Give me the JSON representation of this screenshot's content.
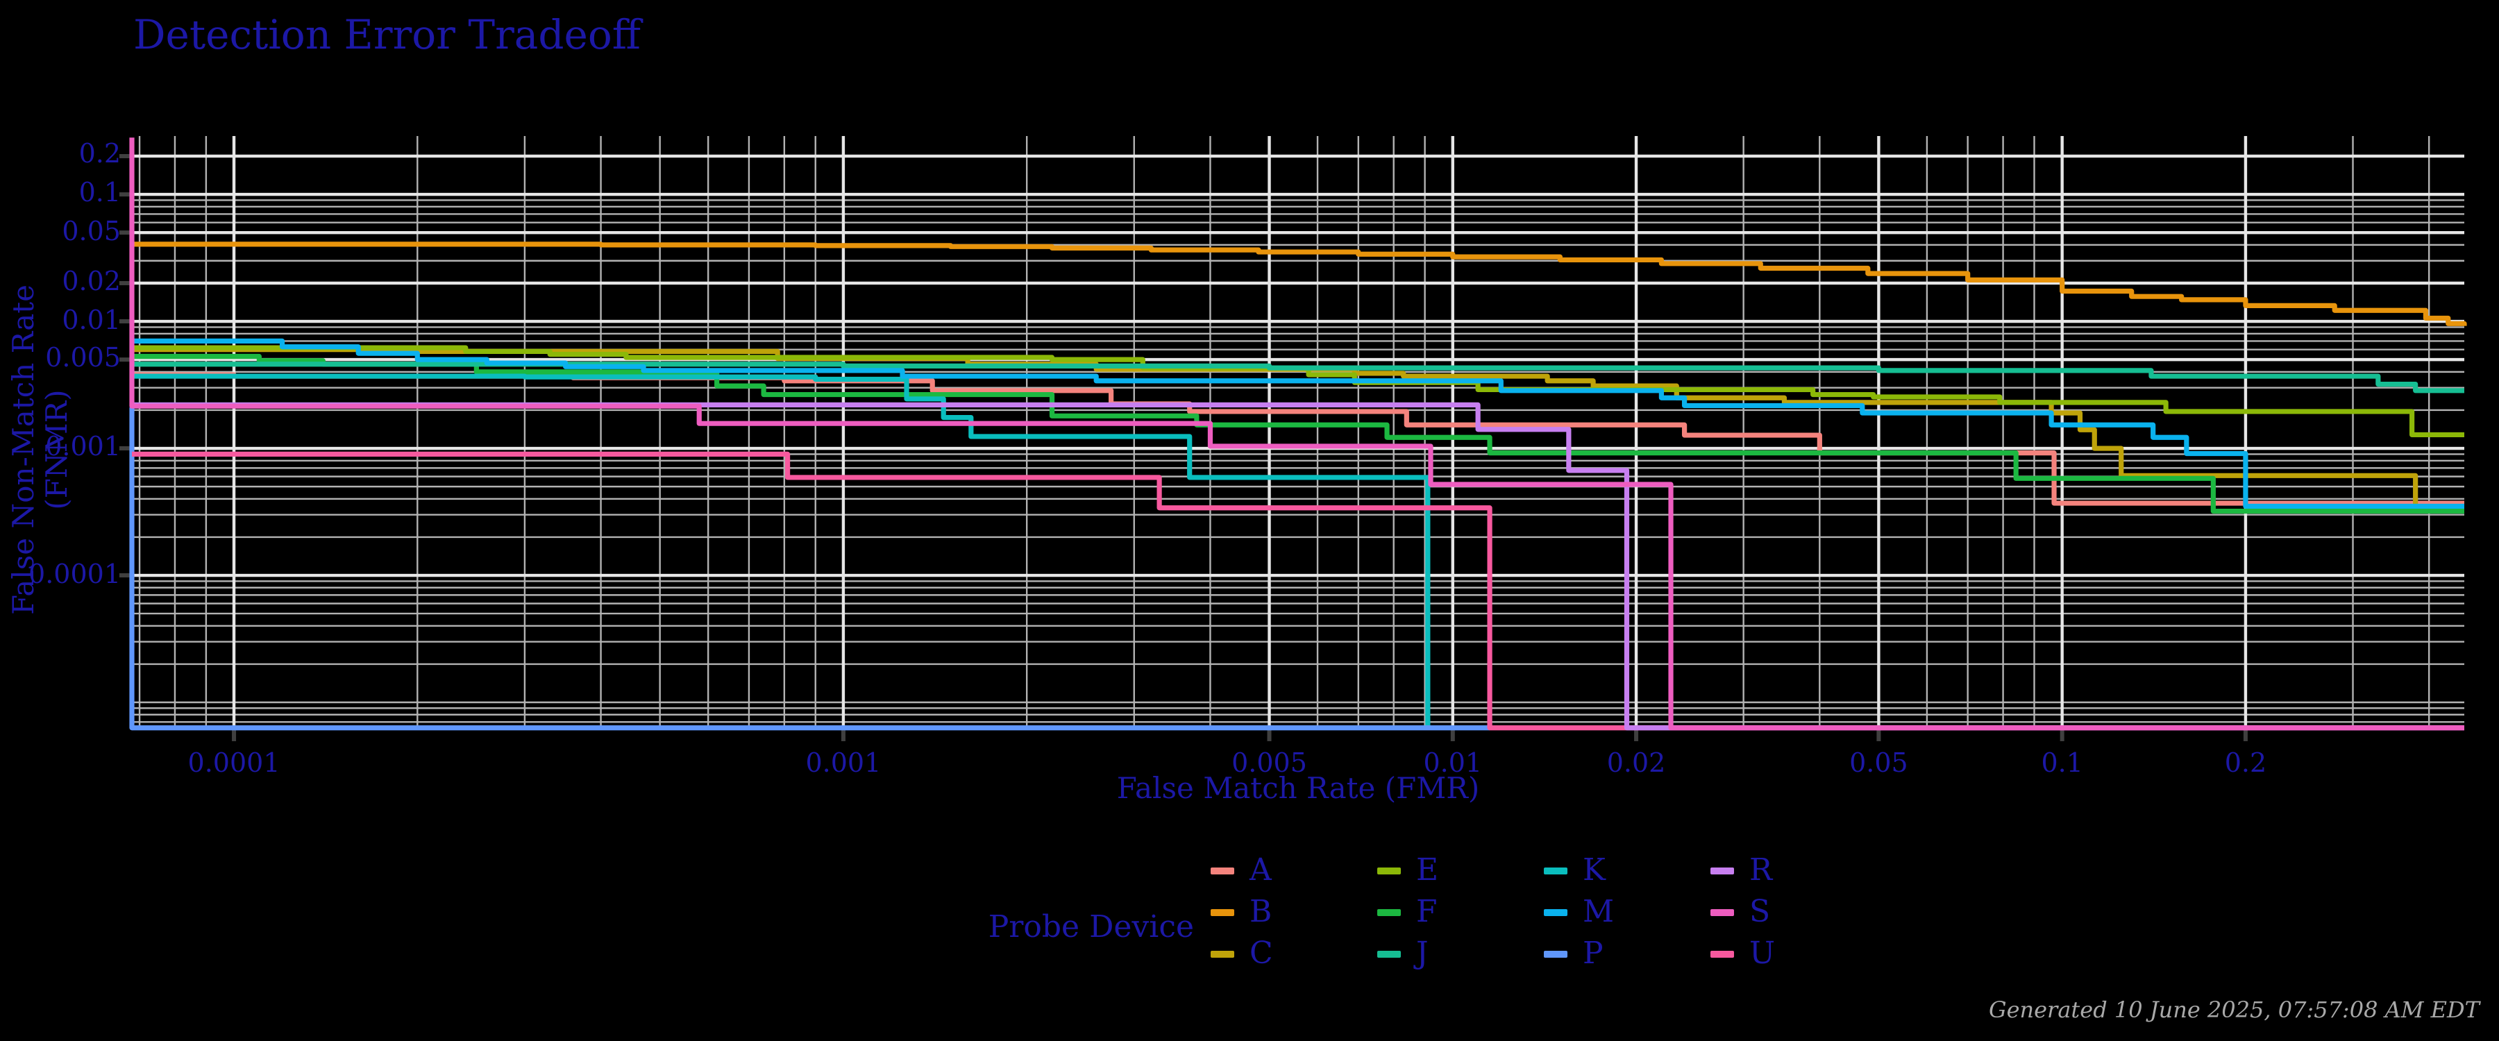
{
  "title": "Detection Error Tradeoff",
  "footer": "Generated 10 June 2025, 07:57:08 AM EDT",
  "legend": {
    "title": "Probe Device",
    "rows_per_column": 3
  },
  "chart_data": {
    "type": "line",
    "subtype": "step-DET-curves",
    "xlabel": "False Match Rate (FMR)",
    "ylabel": "False Non-Match Rate (FNMR)",
    "x_scale": "log",
    "y_scale": "log",
    "xlim": [
      6.8e-05,
      0.457
    ],
    "ylim": [
      6.2e-06,
      0.288
    ],
    "x_ticks": [
      0.0001,
      0.001,
      0.005,
      0.01,
      0.02,
      0.05,
      0.1,
      0.2
    ],
    "x_tick_labels": [
      "0.0001",
      "0.001",
      "0.005",
      "0.01",
      "0.02",
      "0.05",
      "0.1",
      "0.2"
    ],
    "y_ticks": [
      0.2,
      0.1,
      0.05,
      0.02,
      0.01,
      0.005,
      0.001,
      0.0001
    ],
    "y_tick_labels": [
      "0.2",
      "0.1",
      "0.05",
      "0.02",
      "0.01",
      "0.005",
      "0.001",
      "0.0001"
    ],
    "grid": "on",
    "grid_minor_color": "#b3b3b3",
    "grid_major_color": "#e6e6e6",
    "tick_mark_color": "#3f3f3f",
    "background_color": "#000000",
    "text_color": "#1c18a6",
    "legend_position": "bottom-center",
    "draw_order": [
      "A",
      "B",
      "C",
      "E",
      "F",
      "J",
      "K",
      "M",
      "P",
      "U",
      "R",
      "S"
    ],
    "series": [
      {
        "name": "A",
        "color": "#F4837D",
        "points": [
          [
            6.8e-05,
            0.0038
          ],
          [
            0.0001,
            0.0037
          ],
          [
            0.00036,
            0.0036
          ],
          [
            0.0008,
            0.0034
          ],
          [
            0.0014,
            0.00285
          ],
          [
            0.00275,
            0.00224
          ],
          [
            0.0037,
            0.00195
          ],
          [
            0.0084,
            0.00153
          ],
          [
            0.024,
            0.00127
          ],
          [
            0.04,
            0.00092
          ],
          [
            0.097,
            0.00037
          ],
          [
            0.457,
            0.00037
          ]
        ]
      },
      {
        "name": "B",
        "color": "#E8940C",
        "points": [
          [
            6.8e-05,
            0.0405
          ],
          [
            0.0004,
            0.04
          ],
          [
            0.0009,
            0.0395
          ],
          [
            0.0015,
            0.0388
          ],
          [
            0.0022,
            0.0378
          ],
          [
            0.0032,
            0.0365
          ],
          [
            0.0048,
            0.0352
          ],
          [
            0.007,
            0.0338
          ],
          [
            0.01,
            0.0322
          ],
          [
            0.015,
            0.0305
          ],
          [
            0.022,
            0.0285
          ],
          [
            0.032,
            0.0262
          ],
          [
            0.048,
            0.0238
          ],
          [
            0.07,
            0.0212
          ],
          [
            0.1,
            0.0173
          ],
          [
            0.13,
            0.0157
          ],
          [
            0.157,
            0.0148
          ],
          [
            0.2,
            0.0133
          ],
          [
            0.28,
            0.0122
          ],
          [
            0.395,
            0.0106
          ],
          [
            0.43,
            0.0096
          ],
          [
            0.457,
            0.0092
          ]
        ]
      },
      {
        "name": "C",
        "color": "#BFA30A",
        "points": [
          [
            6.8e-05,
            0.006
          ],
          [
            0.0002,
            0.0058
          ],
          [
            0.00078,
            0.0051
          ],
          [
            0.0016,
            0.0046
          ],
          [
            0.0026,
            0.0042
          ],
          [
            0.0069,
            0.0039
          ],
          [
            0.0083,
            0.0037
          ],
          [
            0.0143,
            0.0034
          ],
          [
            0.017,
            0.0031
          ],
          [
            0.0233,
            0.0025
          ],
          [
            0.035,
            0.0023
          ],
          [
            0.096,
            0.0019
          ],
          [
            0.107,
            0.0014
          ],
          [
            0.113,
            0.001
          ],
          [
            0.125,
            0.00061
          ],
          [
            0.38,
            0.00034
          ],
          [
            0.457,
            0.00034
          ]
        ]
      },
      {
        "name": "E",
        "color": "#8CB808",
        "points": [
          [
            6.8e-05,
            0.0062
          ],
          [
            0.00024,
            0.0058
          ],
          [
            0.00033,
            0.0055
          ],
          [
            0.00044,
            0.0052
          ],
          [
            0.0022,
            0.005
          ],
          [
            0.0031,
            0.0043
          ],
          [
            0.0058,
            0.0038
          ],
          [
            0.0069,
            0.0033
          ],
          [
            0.011,
            0.0029
          ],
          [
            0.039,
            0.00265
          ],
          [
            0.049,
            0.00254
          ],
          [
            0.079,
            0.0023
          ],
          [
            0.148,
            0.00195
          ],
          [
            0.375,
            0.00128
          ],
          [
            0.457,
            0.00128
          ]
        ]
      },
      {
        "name": "F",
        "color": "#1CB841",
        "points": [
          [
            6.8e-05,
            0.0053
          ],
          [
            0.00011,
            0.0049
          ],
          [
            0.00014,
            0.0046
          ],
          [
            0.00025,
            0.004
          ],
          [
            0.00062,
            0.0031
          ],
          [
            0.00074,
            0.00265
          ],
          [
            0.0022,
            0.0018
          ],
          [
            0.0038,
            0.00153
          ],
          [
            0.0078,
            0.00122
          ],
          [
            0.0115,
            0.00092
          ],
          [
            0.084,
            0.00058
          ],
          [
            0.177,
            0.00032
          ],
          [
            0.457,
            0.00032
          ]
        ]
      },
      {
        "name": "J",
        "color": "#16BE93",
        "points": [
          [
            6.8e-05,
            0.0046
          ],
          [
            0.001,
            0.00445
          ],
          [
            0.005,
            0.0043
          ],
          [
            0.05,
            0.0041
          ],
          [
            0.14,
            0.0037
          ],
          [
            0.33,
            0.0032
          ],
          [
            0.38,
            0.00285
          ],
          [
            0.457,
            0.00285
          ]
        ]
      },
      {
        "name": "K",
        "color": "#0ABEBE",
        "points": [
          [
            6.8e-05,
            0.0037
          ],
          [
            0.0003,
            0.00365
          ],
          [
            0.0009,
            0.0035
          ],
          [
            0.00127,
            0.00245
          ],
          [
            0.00146,
            0.00175
          ],
          [
            0.00162,
            0.00124
          ],
          [
            0.0037,
            0.00059
          ],
          [
            0.0091,
            6.3e-06
          ]
        ]
      },
      {
        "name": "M",
        "color": "#0AB2EE",
        "points": [
          [
            6.8e-05,
            0.007
          ],
          [
            0.00012,
            0.0063
          ],
          [
            0.00016,
            0.0056
          ],
          [
            0.0002,
            0.005
          ],
          [
            0.00026,
            0.0047
          ],
          [
            0.00035,
            0.0044
          ],
          [
            0.00047,
            0.0041
          ],
          [
            0.00125,
            0.0037
          ],
          [
            0.0026,
            0.0034
          ],
          [
            0.012,
            0.00285
          ],
          [
            0.022,
            0.0025
          ],
          [
            0.024,
            0.00217
          ],
          [
            0.047,
            0.0019
          ],
          [
            0.096,
            0.00153
          ],
          [
            0.141,
            0.00122
          ],
          [
            0.16,
            0.00091
          ],
          [
            0.2,
            0.00035
          ],
          [
            0.457,
            0.00035
          ]
        ]
      },
      {
        "name": "P",
        "color": "#6097FC",
        "points": [
          [
            6.8e-05,
            0.0021
          ],
          [
            6.8e-05,
            6.3e-06
          ],
          [
            0.0115,
            6.3e-06
          ]
        ]
      },
      {
        "name": "R",
        "color": "#C77FF0",
        "points": [
          [
            6.8e-05,
            0.0022
          ],
          [
            0.011,
            0.00141
          ],
          [
            0.0155,
            0.00067
          ],
          [
            0.0193,
            6.3e-06
          ],
          [
            0.457,
            6.3e-06
          ]
        ]
      },
      {
        "name": "S",
        "color": "#EE5DC0",
        "points": [
          [
            6.8e-05,
            0.28
          ],
          [
            6.8e-05,
            0.00215
          ],
          [
            0.00058,
            0.00157
          ],
          [
            0.004,
            0.00104
          ],
          [
            0.0092,
            0.00052
          ],
          [
            0.0228,
            6.3e-06
          ],
          [
            0.457,
            6.3e-06
          ]
        ]
      },
      {
        "name": "U",
        "color": "#F7599E",
        "points": [
          [
            6.8e-05,
            0.0009
          ],
          [
            0.00081,
            0.00059
          ],
          [
            0.0033,
            0.00034
          ],
          [
            0.0115,
            6.3e-06
          ],
          [
            0.457,
            6.3e-06
          ]
        ]
      }
    ]
  }
}
